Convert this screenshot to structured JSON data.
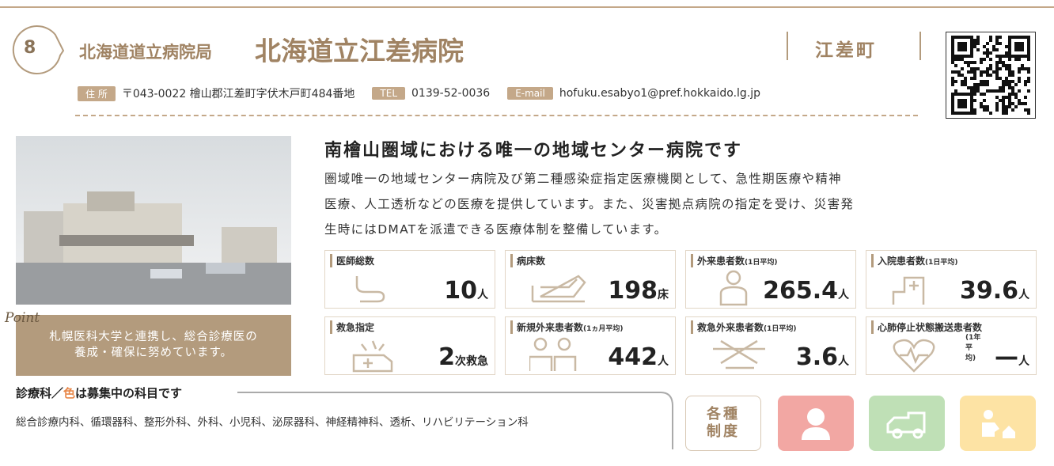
{
  "header": {
    "number": "8",
    "organization": "北海道道立病院局",
    "name": "北海道立江差病院",
    "town": "江差町"
  },
  "contact": {
    "address_label": "住 所",
    "address": "〒043-0022 檜山郡江差町字伏木戸町484番地",
    "tel_label": "TEL",
    "tel": "0139-52-0036",
    "email_label": "E-mail",
    "email": "hofuku.esabyo1@pref.hokkaido.lg.jp"
  },
  "point": {
    "label": "Point",
    "text": [
      "札幌医科大学と連携し、総合診療医の",
      "養成・確保に努めています。"
    ]
  },
  "headline": "南檜山圏域における唯一の地域センター病院です",
  "description": [
    "圏域唯一の地域センター病院及び第二種感染症指定医療機関として、急性期医療や精神",
    "医療、人工透析などの医療を提供しています。また、災害拠点病院の指定を受け、災害発",
    "生時にはDMATを派遣できる医療体制を整備しています。"
  ],
  "stats": [
    {
      "label": "医師総数",
      "value": "10",
      "unit": "人"
    },
    {
      "label": "病床数",
      "value": "198",
      "unit": "床"
    },
    {
      "label": "外来患者数",
      "note": "(1日平均)",
      "value": "265.4",
      "unit": "人"
    },
    {
      "label": "入院患者数",
      "note": "(1日平均)",
      "value": "39.6",
      "unit": "人"
    },
    {
      "label": "救急指定",
      "value": "2",
      "unit": "次救急"
    },
    {
      "label": "新規外来患者数",
      "note": "(1ヵ月平均)",
      "value": "442",
      "unit": "人"
    },
    {
      "label": "救急外来患者数",
      "note": "(1日平均)",
      "value": "3.6",
      "unit": "人"
    },
    {
      "label": "心肺停止状態搬送患者数",
      "note": "(1年平均)",
      "value": "—",
      "unit": "人"
    }
  ],
  "departments": {
    "heading_before": "診療科／",
    "heading_color": "色",
    "heading_after": "は募集中の科目です",
    "list": "総合診療内科、循環器科、整形外科、外科、小児科、泌尿器科、神経精神科、透析、リハビリテーション科"
  },
  "systems_button": [
    "各種",
    "制度"
  ]
}
